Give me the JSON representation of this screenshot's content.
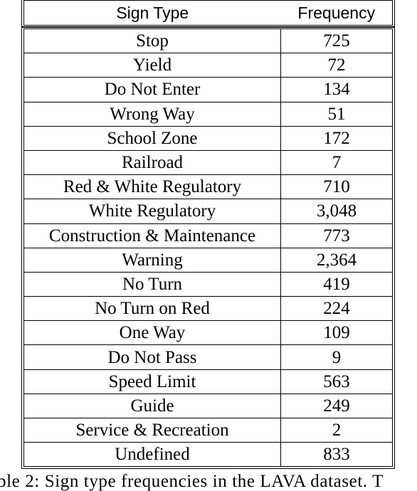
{
  "table": {
    "headers": {
      "type": "Sign Type",
      "frequency": "Frequency"
    },
    "rows": [
      {
        "type": "Stop",
        "frequency": "725"
      },
      {
        "type": "Yield",
        "frequency": "72"
      },
      {
        "type": "Do Not Enter",
        "frequency": "134"
      },
      {
        "type": "Wrong Way",
        "frequency": "51"
      },
      {
        "type": "School Zone",
        "frequency": "172"
      },
      {
        "type": "Railroad",
        "frequency": "7"
      },
      {
        "type": "Red & White Regulatory",
        "frequency": "710"
      },
      {
        "type": "White Regulatory",
        "frequency": "3,048"
      },
      {
        "type": "Construction & Maintenance",
        "frequency": "773"
      },
      {
        "type": "Warning",
        "frequency": "2,364"
      },
      {
        "type": "No Turn",
        "frequency": "419"
      },
      {
        "type": "No Turn on Red",
        "frequency": "224"
      },
      {
        "type": "One Way",
        "frequency": "109"
      },
      {
        "type": "Do Not Pass",
        "frequency": "9"
      },
      {
        "type": "Speed Limit",
        "frequency": "563"
      },
      {
        "type": "Guide",
        "frequency": "249"
      },
      {
        "type": "Service & Recreation",
        "frequency": "2"
      },
      {
        "type": "Undefined",
        "frequency": "833"
      }
    ]
  },
  "caption": "ble 2: Sign type frequencies in the LAVA dataset. T"
}
